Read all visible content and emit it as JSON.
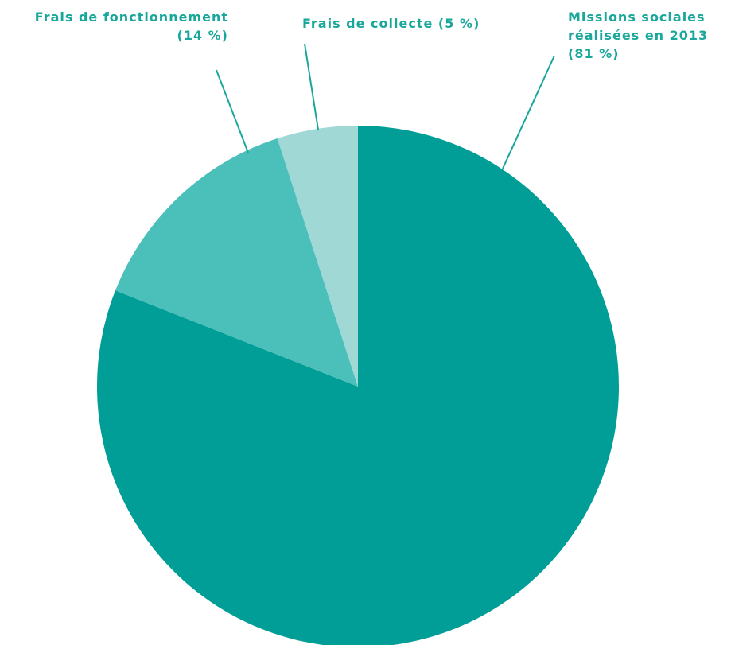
{
  "chart_data": {
    "type": "pie",
    "categories": [
      "Missions sociales réalisées en 2013",
      "Frais de fonctionnement",
      "Frais de collecte"
    ],
    "values": [
      81,
      14,
      5
    ],
    "value_labels": [
      "(81 %)",
      "(14 %)",
      "(5 %)"
    ],
    "colors": [
      "#009e96",
      "#4bc0bb",
      "#a0d8d6"
    ]
  }
}
